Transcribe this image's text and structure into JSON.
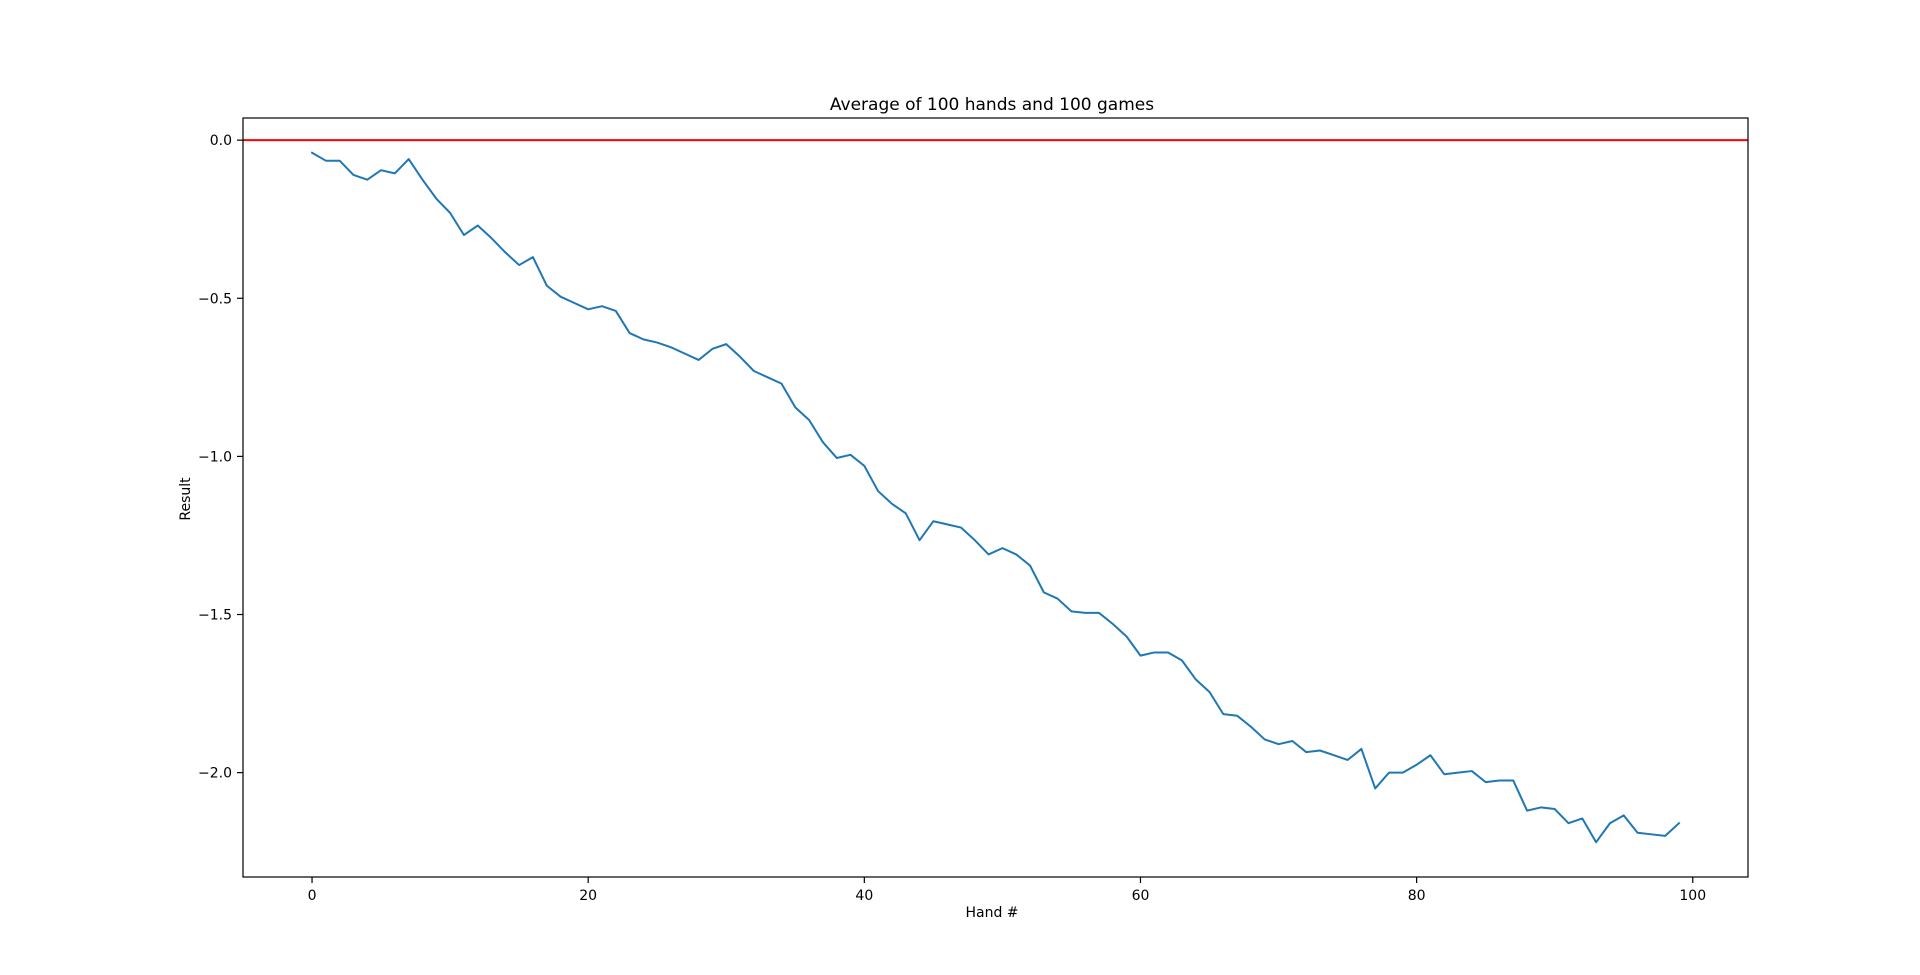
{
  "chart_data": {
    "type": "line",
    "title": "Average of 100 hands and 100 games",
    "xlabel": "Hand #",
    "ylabel": "Result",
    "xlim": [
      -5,
      104
    ],
    "ylim": [
      -2.33,
      0.07
    ],
    "x_ticks": [
      0,
      20,
      40,
      60,
      80,
      100
    ],
    "y_ticks": [
      0.0,
      -0.5,
      -1.0,
      -1.5,
      -2.0
    ],
    "x_tick_labels": [
      "0",
      "20",
      "40",
      "60",
      "80",
      "100"
    ],
    "y_tick_labels": [
      "0.0",
      "−0.5",
      "−1.0",
      "−1.5",
      "−2.0"
    ],
    "grid": false,
    "reference_line": {
      "y": 0.0,
      "color": "#ff0000"
    },
    "series": [
      {
        "color": "#1f77b4",
        "x": [
          0,
          1,
          2,
          3,
          4,
          5,
          6,
          7,
          8,
          9,
          10,
          11,
          12,
          13,
          14,
          15,
          16,
          17,
          18,
          19,
          20,
          21,
          22,
          23,
          24,
          25,
          26,
          27,
          28,
          29,
          30,
          31,
          32,
          33,
          34,
          35,
          36,
          37,
          38,
          39,
          40,
          41,
          42,
          43,
          44,
          45,
          46,
          47,
          48,
          49,
          50,
          51,
          52,
          53,
          54,
          55,
          56,
          57,
          58,
          59,
          60,
          61,
          62,
          63,
          64,
          65,
          66,
          67,
          68,
          69,
          70,
          71,
          72,
          73,
          74,
          75,
          76,
          77,
          78,
          79,
          80,
          81,
          82,
          83,
          84,
          85,
          86,
          87,
          88,
          89,
          90,
          91,
          92,
          93,
          94,
          95,
          96,
          97,
          98,
          99
        ],
        "values": [
          -0.04,
          -0.065,
          -0.065,
          -0.11,
          -0.125,
          -0.095,
          -0.105,
          -0.06,
          -0.125,
          -0.185,
          -0.23,
          -0.3,
          -0.27,
          -0.31,
          -0.355,
          -0.395,
          -0.37,
          -0.46,
          -0.495,
          -0.515,
          -0.535,
          -0.525,
          -0.54,
          -0.61,
          -0.63,
          -0.64,
          -0.655,
          -0.675,
          -0.695,
          -0.66,
          -0.645,
          -0.685,
          -0.73,
          -0.75,
          -0.77,
          -0.845,
          -0.885,
          -0.955,
          -1.005,
          -0.995,
          -1.03,
          -1.11,
          -1.15,
          -1.18,
          -1.265,
          -1.205,
          -1.215,
          -1.225,
          -1.265,
          -1.31,
          -1.29,
          -1.31,
          -1.345,
          -1.43,
          -1.45,
          -1.49,
          -1.495,
          -1.495,
          -1.53,
          -1.57,
          -1.63,
          -1.62,
          -1.62,
          -1.645,
          -1.705,
          -1.745,
          -1.815,
          -1.82,
          -1.855,
          -1.895,
          -1.91,
          -1.9,
          -1.935,
          -1.93,
          -1.945,
          -1.96,
          -1.925,
          -2.05,
          -2.0,
          -2.0,
          -1.975,
          -1.945,
          -2.005,
          -2.0,
          -1.995,
          -2.03,
          -2.025,
          -2.025,
          -2.12,
          -2.11,
          -2.115,
          -2.16,
          -2.145,
          -2.22,
          -2.16,
          -2.135,
          -2.19,
          -2.195,
          -2.2,
          -2.16
        ]
      }
    ]
  }
}
